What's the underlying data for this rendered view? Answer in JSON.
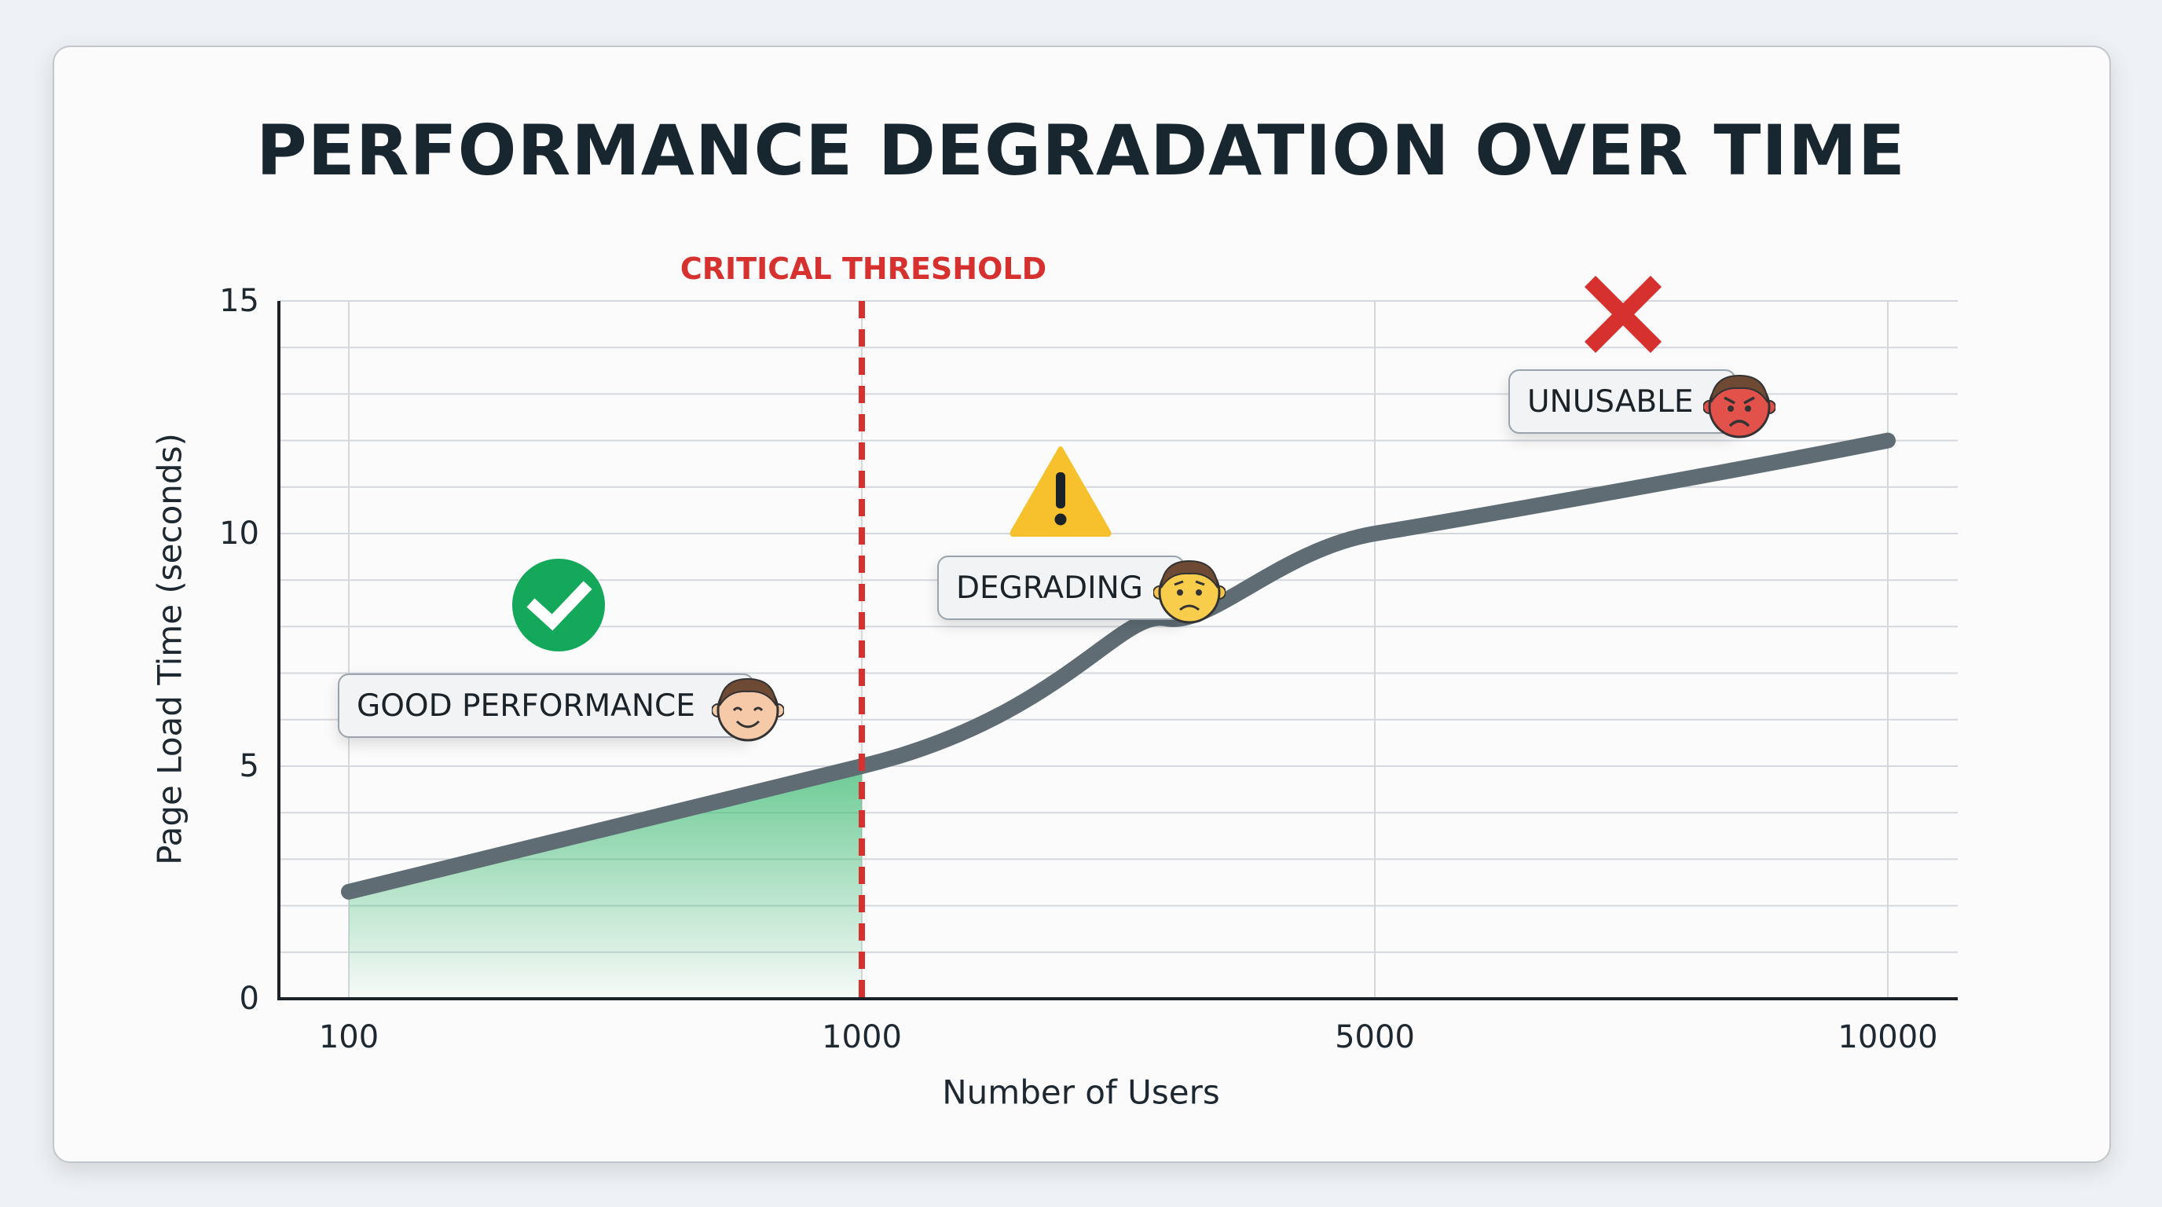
{
  "chart_data": {
    "type": "line",
    "title": "PERFORMANCE DEGRADATION OVER TIME",
    "xlabel": "Number of Users",
    "ylabel": "Page Load Time (seconds)",
    "categories": [
      "100",
      "1000",
      "5000",
      "10000"
    ],
    "series": [
      {
        "values": [
          2.3,
          5.0,
          10.0,
          12.0
        ],
        "color": "#5f6c74"
      }
    ],
    "ylim": [
      0,
      15
    ],
    "yticks": [
      "0",
      "5",
      "10",
      "15"
    ],
    "grid": true,
    "shaded_region": {
      "from": "100",
      "to": "1000",
      "color": "#3cba72"
    },
    "threshold": {
      "at": "1000",
      "label": "CRITICAL THRESHOLD",
      "color": "#d6302f"
    },
    "annotations": [
      {
        "label": "GOOD PERFORMANCE",
        "icon": "check-circle-icon",
        "face": "happy-face-icon",
        "color": "#14a85a"
      },
      {
        "label": "DEGRADING",
        "icon": "warning-triangle-icon",
        "face": "worried-face-icon",
        "color": "#f6c12c"
      },
      {
        "label": "UNUSABLE",
        "icon": "red-x-icon",
        "face": "angry-face-icon",
        "color": "#d6302f"
      }
    ]
  }
}
